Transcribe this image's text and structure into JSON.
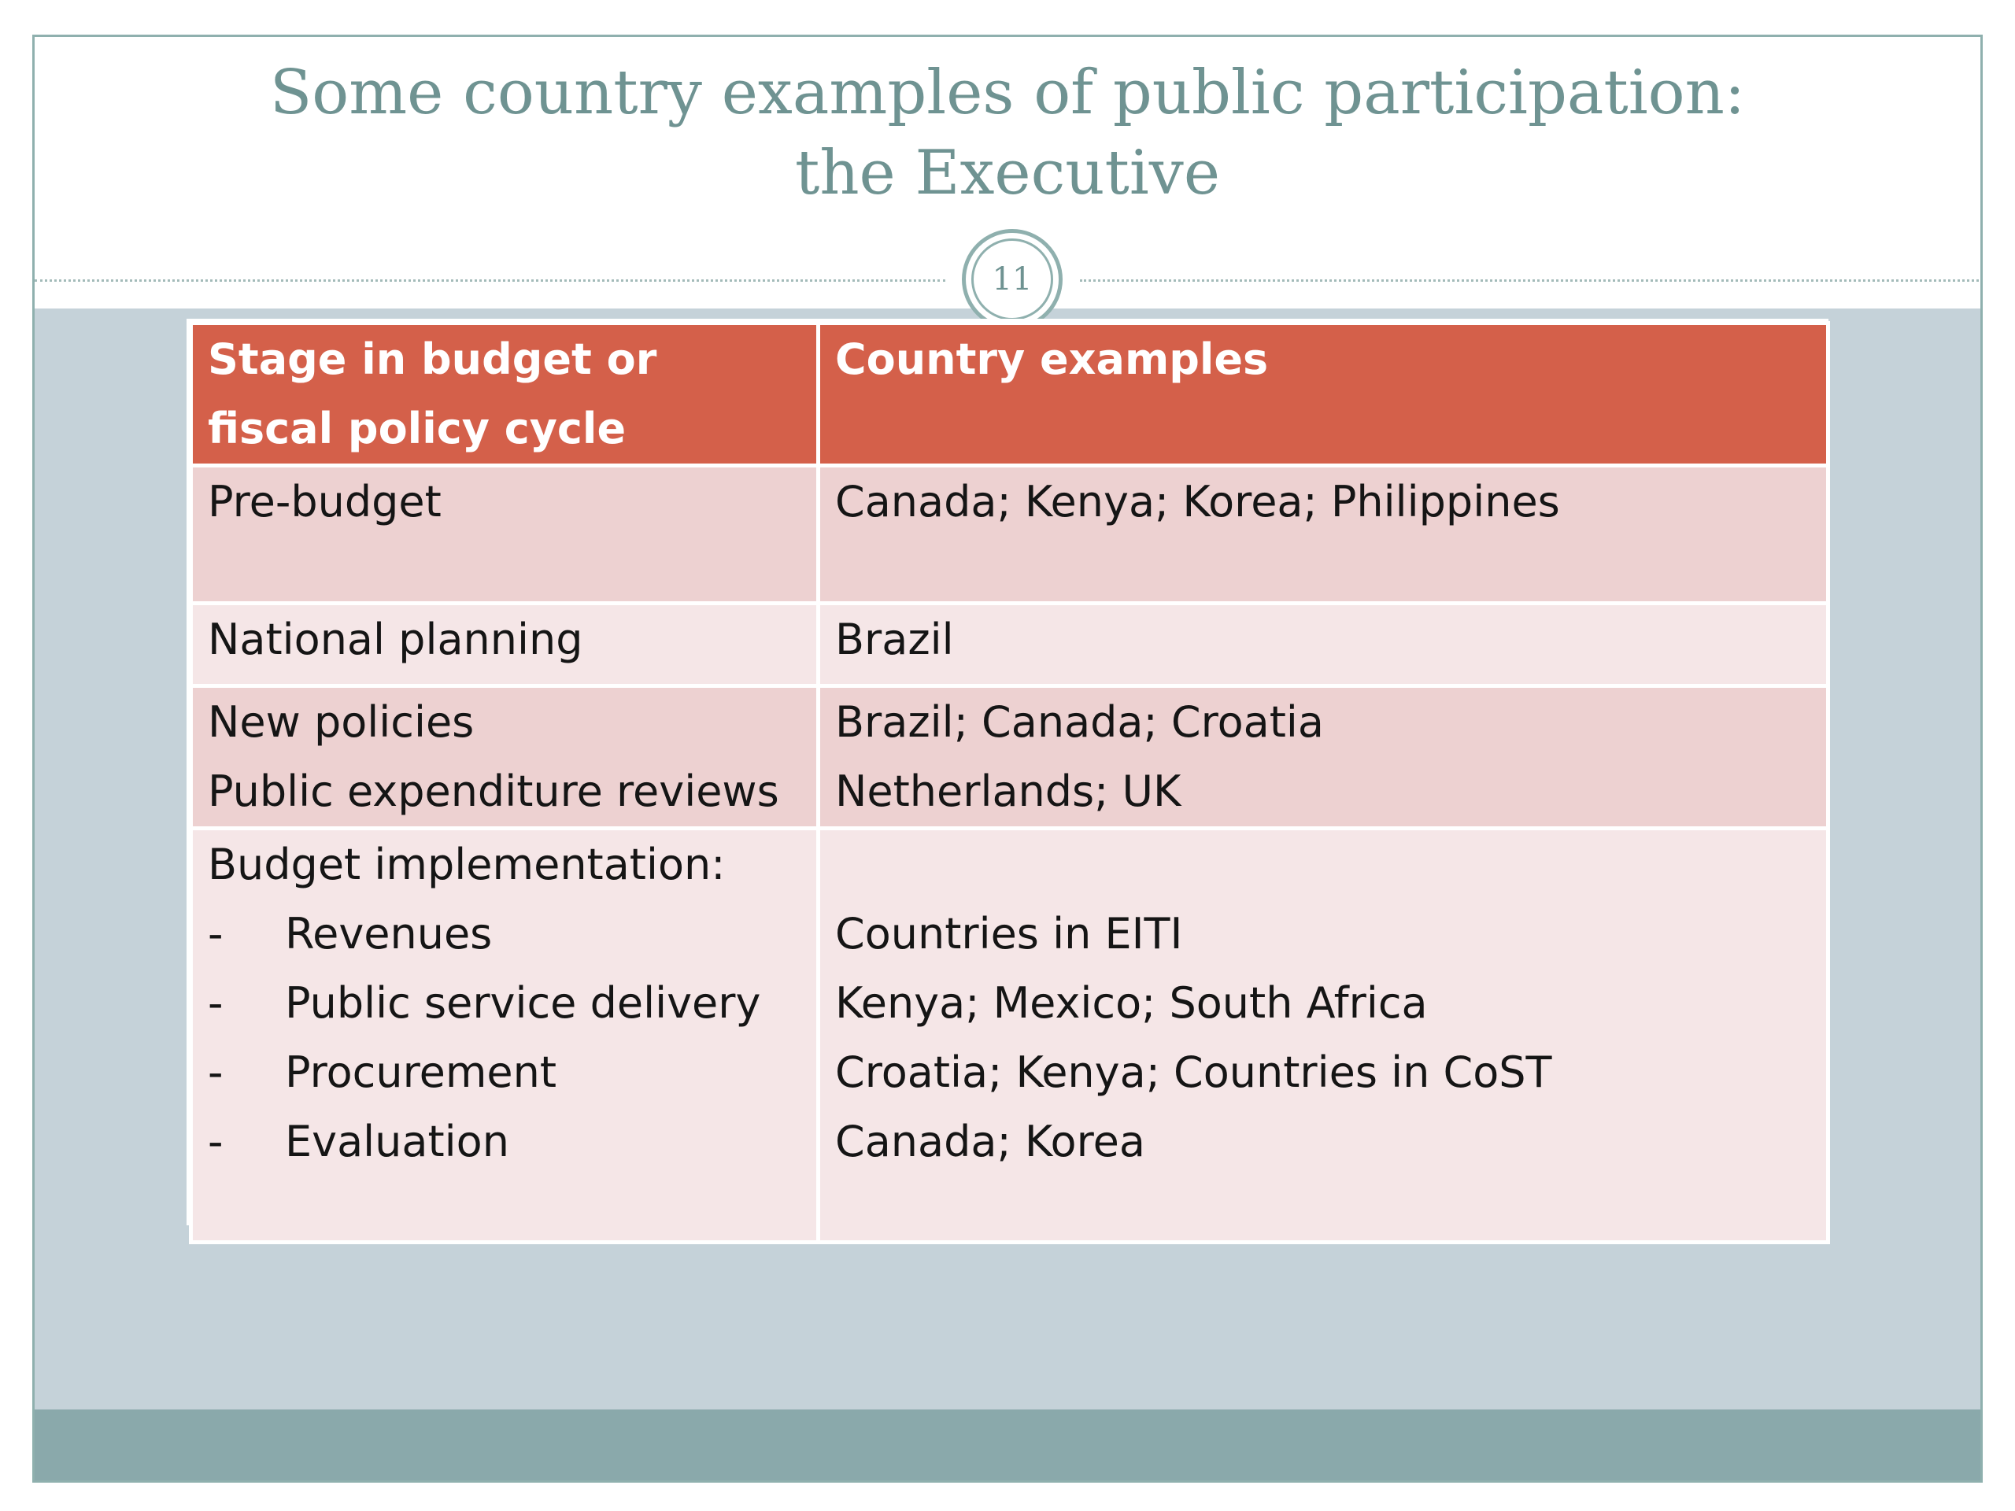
{
  "slide": {
    "title_line1": "Some country examples of public participation:",
    "title_line2": "the Executive",
    "page_number": "11"
  },
  "table": {
    "headers": {
      "stage_line1": "Stage in budget or",
      "stage_line2": "fiscal policy cycle",
      "country": "Country examples"
    },
    "rows": [
      {
        "stage": [
          "Pre-budget"
        ],
        "countries": [
          "Canada; Kenya; Korea; Philippines"
        ]
      },
      {
        "stage": [
          "National planning"
        ],
        "countries": [
          "Brazil"
        ]
      },
      {
        "stage": [
          "New policies",
          "Public expenditure reviews"
        ],
        "countries": [
          "Brazil; Canada; Croatia",
          "Netherlands; UK"
        ]
      },
      {
        "stage_heading": "Budget implementation:",
        "dash": "-",
        "items": [
          {
            "stage": "Revenues",
            "countries": "Countries in EITI"
          },
          {
            "stage": "Public service delivery",
            "countries": "Kenya; Mexico; South Africa"
          },
          {
            "stage": "Procurement",
            "countries": "Croatia; Kenya; Countries in CoST"
          },
          {
            "stage": "Evaluation",
            "countries": "Canada; Korea"
          }
        ]
      }
    ]
  },
  "colors": {
    "header_fill": "#d4604a",
    "row_dark": "#edd1d1",
    "row_light": "#f5e6e7",
    "title": "#6f9392",
    "background": "#c5d2d9",
    "footer": "#8aa9ab"
  }
}
